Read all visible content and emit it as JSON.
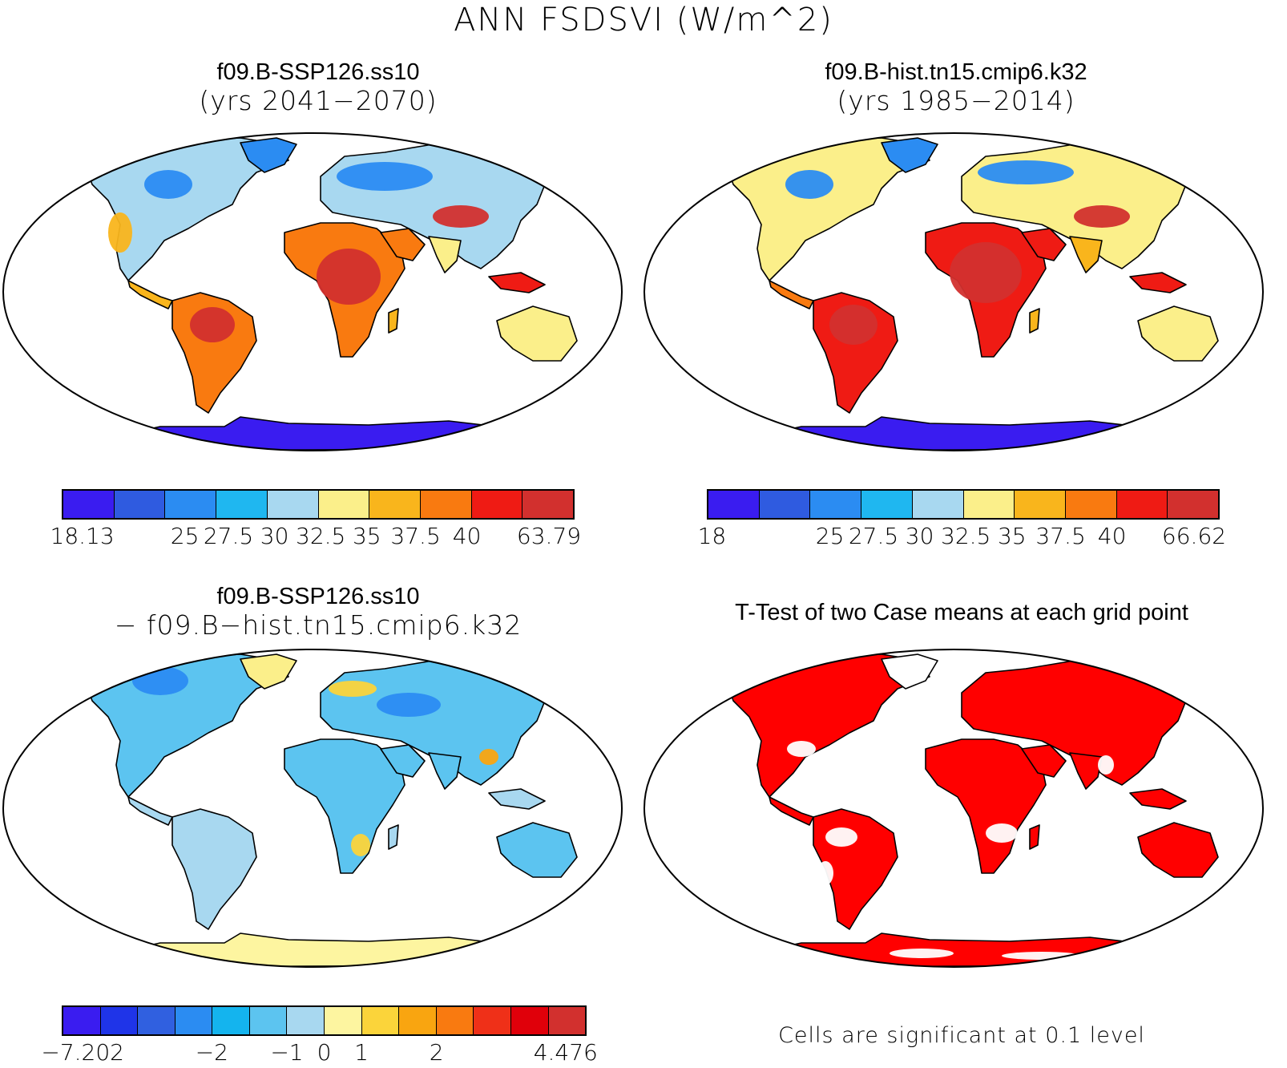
{
  "title": "ANN FSDSVI (W/m^2)",
  "panels": [
    {
      "title_line1": "f09.B-SSP126.ss10",
      "title_line2": "(yrs 2041−2070)",
      "colors": [
        "#3a1cf0",
        "#2f5be0",
        "#2b8cf2",
        "#1fb7f0",
        "#a8d8f0",
        "#fbef8a",
        "#f9b51c",
        "#f97a10",
        "#ef1b14",
        "#d2302e"
      ],
      "tick_labels": [
        "18.13",
        "25",
        "27.5",
        "30",
        "32.5",
        "35",
        "37.5",
        "40",
        "63.79"
      ]
    },
    {
      "title_line1": "f09.B-hist.tn15.cmip6.k32",
      "title_line2": "(yrs 1985−2014)",
      "colors": [
        "#3a1cf0",
        "#2f5be0",
        "#2b8cf2",
        "#1fb7f0",
        "#a8d8f0",
        "#fbef8a",
        "#f9b51c",
        "#f97a10",
        "#ef1b14",
        "#d2302e"
      ],
      "tick_labels": [
        "18",
        "25",
        "27.5",
        "30",
        "32.5",
        "35",
        "37.5",
        "40",
        "66.62"
      ]
    },
    {
      "title_line1": "f09.B-SSP126.ss10",
      "title_line2": "− f09.B−hist.tn15.cmip6.k32",
      "colors": [
        "#3a1cf0",
        "#1f34e8",
        "#3060e0",
        "#2b8cf2",
        "#14b4ee",
        "#5cc4f0",
        "#a8d8f0",
        "#fdf5a0",
        "#fbd43a",
        "#f9a510",
        "#f97a10",
        "#ef3018",
        "#e0000a",
        "#d2302e"
      ],
      "tick_labels": [
        "−7.202",
        "−2",
        "−1",
        "0",
        "1",
        "2",
        "4.476"
      ]
    },
    {
      "title_line1": "T-Test of two Case means at each grid point",
      "note": "Cells are significant at 0.1 level",
      "sig_color": "#ff0000"
    }
  ]
}
